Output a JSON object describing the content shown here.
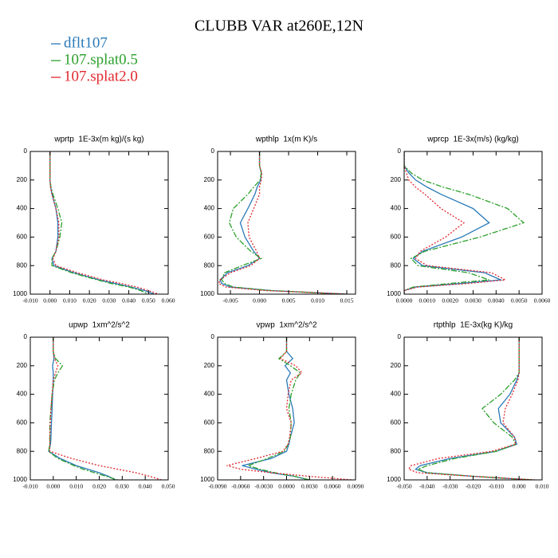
{
  "title": "CLUBB VAR at260E,12N",
  "chart_data": [
    {
      "type": "line",
      "title": "wprtp  1E-3x(m kg)/(s kg)",
      "y": [
        0,
        100,
        150,
        200,
        250,
        300,
        400,
        500,
        600,
        700,
        750,
        800,
        850,
        900,
        925,
        950,
        975,
        1000
      ],
      "ylim": [
        1000,
        0
      ],
      "yticks": [
        0,
        200,
        400,
        600,
        800,
        1000
      ],
      "xlim": [
        -0.01,
        0.06
      ],
      "xticks": [
        {
          "value": -0.01,
          "label": "-0.010"
        },
        {
          "value": 0,
          "label": "0.000"
        },
        {
          "value": 0.01,
          "label": "0.010"
        },
        {
          "value": 0.02,
          "label": "0.020"
        },
        {
          "value": 0.03,
          "label": "0.030"
        },
        {
          "value": 0.04,
          "label": "0.040"
        },
        {
          "value": 0.05,
          "label": "0.050"
        },
        {
          "value": 0.06,
          "label": "0.060"
        }
      ],
      "series": [
        {
          "name": "dflt107",
          "color": "#2a7ab8",
          "values": [
            0,
            0,
            0,
            0,
            0.0003,
            0.001,
            0.003,
            0.004,
            0.004,
            0.003,
            0.001,
            0.002,
            0.012,
            0.025,
            0.033,
            0.041,
            0.048,
            0.053
          ]
        },
        {
          "name": "107.splat0.5",
          "color": "#2ca02c",
          "values": [
            0,
            0,
            0,
            0,
            0.0005,
            0.0015,
            0.004,
            0.006,
            0.005,
            0.003,
            0.001,
            0.001,
            0.011,
            0.024,
            0.031,
            0.04,
            0.046,
            0.05
          ]
        },
        {
          "name": "107.splat2.0",
          "color": "#e0282e",
          "values": [
            0,
            0,
            0,
            0,
            0.0003,
            0.001,
            0.003,
            0.0045,
            0.0045,
            0.003,
            0.0015,
            0.003,
            0.014,
            0.027,
            0.036,
            0.044,
            0.05,
            0.055
          ]
        }
      ]
    },
    {
      "type": "line",
      "title": "wpthlp  1x(m K)/s",
      "y": [
        0,
        100,
        150,
        200,
        250,
        300,
        400,
        500,
        600,
        700,
        750,
        800,
        850,
        900,
        925,
        950,
        975,
        1000
      ],
      "ylim": [
        1000,
        0
      ],
      "yticks": [
        0,
        200,
        400,
        600,
        800,
        1000
      ],
      "xlim": [
        -0.0072,
        0.0165
      ],
      "xticks": [
        {
          "value": -0.005,
          "label": "-0.005"
        },
        {
          "value": 0,
          "label": "0.000"
        },
        {
          "value": 0.005,
          "label": "0.005"
        },
        {
          "value": 0.01,
          "label": "0.010"
        },
        {
          "value": 0.015,
          "label": "0.015"
        }
      ],
      "series": [
        {
          "name": "dflt107",
          "color": "#2a7ab8",
          "values": [
            0,
            0,
            0.0003,
            0.0002,
            -0.0004,
            -0.0008,
            -0.002,
            -0.0033,
            -0.0025,
            -0.001,
            0,
            -0.002,
            -0.0055,
            -0.0068,
            -0.0065,
            -0.005,
            0.002,
            0.015
          ]
        },
        {
          "name": "107.splat0.5",
          "color": "#2ca02c",
          "values": [
            0,
            0,
            0.0003,
            0.0001,
            -0.001,
            -0.002,
            -0.0045,
            -0.0052,
            -0.004,
            -0.0015,
            0.0003,
            -0.003,
            -0.006,
            -0.0065,
            -0.006,
            -0.0045,
            0.002,
            0.0145
          ]
        },
        {
          "name": "107.splat2.0",
          "color": "#e0282e",
          "values": [
            0,
            0,
            0.0004,
            0.0003,
            0,
            0,
            -0.001,
            -0.002,
            -0.0018,
            -0.0005,
            0,
            -0.0015,
            -0.005,
            -0.0068,
            -0.007,
            -0.0058,
            0.001,
            0.0155
          ]
        }
      ]
    },
    {
      "type": "line",
      "title": "wprcp  1E-3x(m/s) (kg/kg)",
      "y": [
        0,
        100,
        150,
        200,
        250,
        300,
        400,
        500,
        600,
        700,
        750,
        800,
        850,
        900,
        925,
        950,
        975,
        1000
      ],
      "ylim": [
        1000,
        0
      ],
      "yticks": [
        0,
        200,
        400,
        600,
        800,
        1000
      ],
      "xlim": [
        0,
        0.006
      ],
      "xticks": [
        {
          "value": 0,
          "label": "0.0000"
        },
        {
          "value": 0.001,
          "label": "0.0010"
        },
        {
          "value": 0.002,
          "label": "0.0020"
        },
        {
          "value": 0.003,
          "label": "0.0030"
        },
        {
          "value": 0.004,
          "label": "0.0040"
        },
        {
          "value": 0.005,
          "label": "0.0050"
        },
        {
          "value": 0.006,
          "label": "0.0060"
        }
      ],
      "series": [
        {
          "name": "dflt107",
          "color": "#2a7ab8",
          "values": [
            0,
            0,
            0.0002,
            0.0005,
            0.001,
            0.0016,
            0.003,
            0.0037,
            0.0025,
            0.0008,
            0.0004,
            0.0008,
            0.0035,
            0.0042,
            0.0025,
            0.0005,
            0,
            0
          ]
        },
        {
          "name": "107.splat0.5",
          "color": "#2ca02c",
          "values": [
            0,
            0,
            0.0003,
            0.0008,
            0.0017,
            0.0028,
            0.0045,
            0.0052,
            0.0033,
            0.0009,
            0.0003,
            0.0006,
            0.0028,
            0.0037,
            0.002,
            0.0004,
            0,
            0
          ]
        },
        {
          "name": "107.splat2.0",
          "color": "#e0282e",
          "values": [
            0,
            0,
            0.0001,
            0.0002,
            0.0005,
            0.0009,
            0.0016,
            0.0026,
            0.0018,
            0.0007,
            0.0005,
            0.001,
            0.0038,
            0.0044,
            0.0028,
            0.0006,
            0,
            0
          ]
        }
      ]
    },
    {
      "type": "line",
      "title": "upwp  1xm^2/s^2",
      "y": [
        0,
        100,
        150,
        200,
        250,
        300,
        400,
        500,
        600,
        700,
        750,
        800,
        850,
        900,
        925,
        950,
        975,
        1000
      ],
      "ylim": [
        1000,
        0
      ],
      "yticks": [
        0,
        200,
        400,
        600,
        800,
        1000
      ],
      "xlim": [
        -0.01,
        0.05
      ],
      "xticks": [
        {
          "value": -0.01,
          "label": "-0.010"
        },
        {
          "value": 0,
          "label": "0.000"
        },
        {
          "value": 0.01,
          "label": "0.010"
        },
        {
          "value": 0.02,
          "label": "0.020"
        },
        {
          "value": 0.03,
          "label": "0.030"
        },
        {
          "value": 0.04,
          "label": "0.040"
        },
        {
          "value": 0.05,
          "label": "0.050"
        }
      ],
      "series": [
        {
          "name": "dflt107",
          "color": "#2a7ab8",
          "values": [
            0,
            0,
            0.0003,
            -0.0003,
            0,
            0,
            -0.0003,
            -0.0005,
            -0.0008,
            -0.001,
            -0.0012,
            -0.002,
            0.003,
            0.01,
            0.015,
            0.02,
            0.024,
            0.027
          ]
        },
        {
          "name": "107.splat0.5",
          "color": "#2ca02c",
          "values": [
            0,
            0,
            0.001,
            0.004,
            0.002,
            0.0005,
            -0.0005,
            -0.001,
            -0.0015,
            -0.0015,
            -0.0015,
            -0.002,
            0.002,
            0.009,
            0.013,
            0.018,
            0.023,
            0.028
          ]
        },
        {
          "name": "107.splat2.0",
          "color": "#e0282e",
          "values": [
            0,
            0,
            0.0005,
            0.002,
            0.001,
            0,
            -0.0005,
            -0.001,
            -0.0013,
            -0.0015,
            -0.0015,
            -0.0015,
            0.008,
            0.02,
            0.028,
            0.036,
            0.042,
            0.047
          ]
        }
      ]
    },
    {
      "type": "line",
      "title": "vpwp  1xm^2/s^2",
      "y": [
        0,
        100,
        150,
        200,
        250,
        300,
        400,
        500,
        600,
        700,
        750,
        800,
        850,
        900,
        925,
        950,
        975,
        1000
      ],
      "ylim": [
        1000,
        0
      ],
      "yticks": [
        0,
        200,
        400,
        600,
        800,
        1000
      ],
      "xlim": [
        -0.009,
        0.009
      ],
      "xticks": [
        {
          "value": -0.009,
          "label": "-0.0090"
        },
        {
          "value": -0.006,
          "label": "-0.0060"
        },
        {
          "value": -0.003,
          "label": "-0.0030"
        },
        {
          "value": 0,
          "label": "0.0000"
        },
        {
          "value": 0.003,
          "label": "0.0030"
        },
        {
          "value": 0.006,
          "label": "0.0060"
        },
        {
          "value": 0.009,
          "label": "0.0090"
        }
      ],
      "series": [
        {
          "name": "dflt107",
          "color": "#2a7ab8",
          "values": [
            0,
            0,
            0.0008,
            -0.0002,
            0.0005,
            0,
            0.0003,
            0.0008,
            0.001,
            0.0005,
            0.0003,
            0,
            -0.002,
            -0.0058,
            -0.004,
            -0.002,
            0.001,
            0.003
          ]
        },
        {
          "name": "107.splat0.5",
          "color": "#2ca02c",
          "values": [
            0,
            0,
            -0.001,
            0.0005,
            0.0018,
            0.0012,
            0.0006,
            0.0003,
            0.0006,
            0.0005,
            0.0002,
            -0.0003,
            -0.0025,
            -0.005,
            -0.0035,
            -0.0015,
            0.001,
            0.003
          ]
        },
        {
          "name": "107.splat2.0",
          "color": "#e0282e",
          "values": [
            0,
            0,
            -0.0008,
            0.0012,
            0.002,
            0.0006,
            0.0002,
            0,
            0.0006,
            0.0004,
            0.0002,
            -0.0005,
            -0.004,
            -0.0078,
            -0.006,
            -0.002,
            0.003,
            0.0085
          ]
        }
      ]
    },
    {
      "type": "line",
      "title": "rtpthlp  1E-3x(kg K)/kg",
      "y": [
        0,
        100,
        150,
        200,
        250,
        300,
        400,
        500,
        600,
        700,
        750,
        800,
        850,
        900,
        925,
        950,
        975,
        1000
      ],
      "ylim": [
        1000,
        0
      ],
      "yticks": [
        0,
        200,
        400,
        600,
        800,
        1000
      ],
      "xlim": [
        -0.05,
        0.01
      ],
      "xticks": [
        {
          "value": -0.05,
          "label": "-0.050"
        },
        {
          "value": -0.04,
          "label": "-0.040"
        },
        {
          "value": -0.03,
          "label": "-0.030"
        },
        {
          "value": -0.02,
          "label": "-0.020"
        },
        {
          "value": -0.01,
          "label": "-0.010"
        },
        {
          "value": 0,
          "label": "0.000"
        },
        {
          "value": 0.01,
          "label": "0.010"
        }
      ],
      "series": [
        {
          "name": "dflt107",
          "color": "#2a7ab8",
          "values": [
            0,
            0,
            0,
            0,
            0,
            -0.001,
            -0.004,
            -0.009,
            -0.008,
            -0.002,
            -0.001,
            -0.01,
            -0.03,
            -0.043,
            -0.045,
            -0.04,
            -0.02,
            0.005
          ]
        },
        {
          "name": "107.splat0.5",
          "color": "#2ca02c",
          "values": [
            0,
            0,
            0,
            0,
            0,
            -0.002,
            -0.008,
            -0.016,
            -0.011,
            -0.003,
            -0.0015,
            -0.01,
            -0.028,
            -0.04,
            -0.044,
            -0.04,
            -0.02,
            0.006
          ]
        },
        {
          "name": "107.splat2.0",
          "color": "#e0282e",
          "values": [
            0,
            0,
            0,
            0,
            0,
            -0.0005,
            -0.003,
            -0.006,
            -0.007,
            -0.002,
            -0.0015,
            -0.012,
            -0.035,
            -0.047,
            -0.048,
            -0.044,
            -0.02,
            0.007
          ]
        }
      ]
    }
  ]
}
